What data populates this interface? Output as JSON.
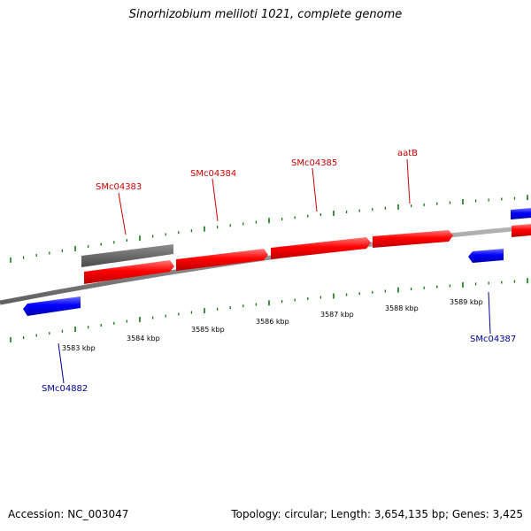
{
  "title": "Sinorhizobium meliloti 1021, complete genome",
  "footer": {
    "accession": "Accession: NC_003047",
    "summary": "Topology: circular; Length: 3,654,135 bp; Genes: 3,425"
  },
  "colors": {
    "forward_gene": "#ff0000",
    "reverse_gene": "#0000ff",
    "other_feature": "#6b6b6b",
    "backbone": "#8c8c8c",
    "ticks": "#117711",
    "forward_label": "#cc0000",
    "reverse_label": "#000099"
  },
  "scale": {
    "unit": "kbp",
    "labels": [
      "3583 kbp",
      "3584 kbp",
      "3585 kbp",
      "3586 kbp",
      "3587 kbp",
      "3588 kbp",
      "3589 kbp"
    ]
  },
  "genes": [
    {
      "name": "SMc04383",
      "strand": "+",
      "labeled": true
    },
    {
      "name": "SMc04384",
      "strand": "+",
      "labeled": true
    },
    {
      "name": "SMc04385",
      "strand": "+",
      "labeled": true
    },
    {
      "name": "aatB",
      "strand": "+",
      "labeled": true
    },
    {
      "name": "SMc04882",
      "strand": "-",
      "labeled": true
    },
    {
      "name": "SMc04387",
      "strand": "-",
      "labeled": true
    }
  ]
}
